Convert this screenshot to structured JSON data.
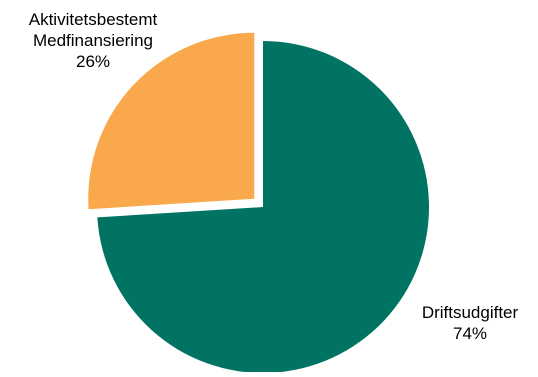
{
  "chart_data": {
    "type": "pie",
    "title": "",
    "legend": "none",
    "start_angle_deg": 0,
    "direction": "clockwise",
    "slices": [
      {
        "label_lines": [
          "Driftsudgifter"
        ],
        "value": 74,
        "value_label": "74%",
        "color": "#007363",
        "exploded": false
      },
      {
        "label_lines": [
          "Aktivitetsbestemt",
          "Medfinansiering"
        ],
        "value": 26,
        "value_label": "26%",
        "color": "#F9A94B",
        "exploded": true
      }
    ]
  }
}
